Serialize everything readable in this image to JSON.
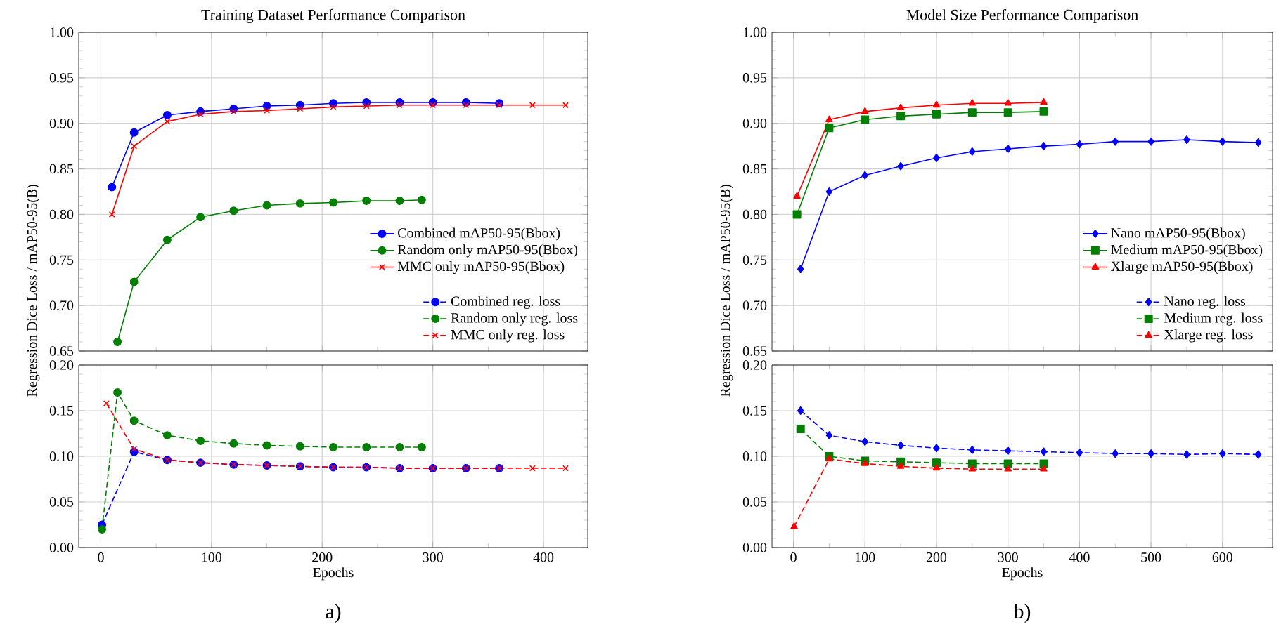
{
  "chart_data": [
    {
      "type": "line",
      "title": "Training Dataset Performance Comparison",
      "ylabel": "Regression Dice Loss / mAP50-95(B)",
      "xlim": [
        -20,
        440
      ],
      "ylim": [
        0.65,
        1.0
      ],
      "xticks": [
        0,
        100,
        200,
        300,
        400
      ],
      "yticks": [
        0.65,
        {
          "value": 0.7,
          "label": "0.70"
        },
        0.75,
        {
          "value": 0.8,
          "label": "0.80"
        },
        0.85,
        {
          "value": 0.9,
          "label": "0.90"
        },
        0.95,
        {
          "value": 1.0,
          "label": "1.00"
        }
      ],
      "grid": true,
      "legend": "bottom right",
      "tick_labels": "y",
      "series": [
        {
          "name": "Combined mAP50-95(Bbox)",
          "color": "#0000ff",
          "marker": "circle",
          "line_style": "solid",
          "x": [
            10,
            30,
            60,
            90,
            120,
            150,
            180,
            210,
            240,
            270,
            300,
            330,
            360
          ],
          "values": [
            0.83,
            0.89,
            0.909,
            0.913,
            0.916,
            0.919,
            0.92,
            0.922,
            0.923,
            0.923,
            0.923,
            0.923,
            0.922
          ]
        },
        {
          "name": "Random only mAP50-95(Bbox)",
          "color": "#008000",
          "marker": "circle",
          "line_style": "solid",
          "x": [
            15,
            30,
            60,
            90,
            120,
            150,
            180,
            210,
            240,
            270,
            290
          ],
          "values": [
            0.66,
            0.726,
            0.772,
            0.797,
            0.804,
            0.81,
            0.812,
            0.813,
            0.815,
            0.815,
            0.816
          ]
        },
        {
          "name": "MMC only mAP50-95(Bbox)",
          "color": "#ff0000",
          "marker": "cross",
          "line_style": "solid",
          "x": [
            10,
            30,
            60,
            90,
            120,
            150,
            180,
            210,
            240,
            270,
            300,
            330,
            360,
            390,
            420
          ],
          "values": [
            0.8,
            0.875,
            0.902,
            0.91,
            0.913,
            0.914,
            0.916,
            0.918,
            0.919,
            0.92,
            0.92,
            0.92,
            0.92,
            0.92,
            0.92
          ]
        }
      ]
    },
    {
      "type": "line",
      "xlabel": "Epochs",
      "xlim": [
        -20,
        440
      ],
      "ylim": [
        0,
        0.2
      ],
      "xticks": [
        0,
        100,
        200,
        300,
        400
      ],
      "yticks": [
        {
          "value": 0,
          "label": "0.00"
        },
        0.05,
        {
          "value": 0.1,
          "label": "0.10"
        },
        0.15,
        {
          "value": 0.2,
          "label": "0.20"
        }
      ],
      "grid": true,
      "legend": "top right",
      "annotations": [
        "a)"
      ],
      "series": [
        {
          "name": "Combined reg. loss",
          "color": "#0000ff",
          "marker": "circle",
          "line_style": "dashed",
          "x": [
            1,
            30,
            60,
            90,
            120,
            150,
            180,
            210,
            240,
            270,
            300,
            330,
            360
          ],
          "values": [
            0.025,
            0.105,
            0.096,
            0.093,
            0.091,
            0.09,
            0.089,
            0.088,
            0.088,
            0.087,
            0.087,
            0.087,
            0.087
          ]
        },
        {
          "name": "Random only reg. loss",
          "color": "#008000",
          "marker": "circle",
          "line_style": "dashed",
          "x": [
            1,
            15,
            30,
            60,
            90,
            120,
            150,
            180,
            210,
            240,
            270,
            290
          ],
          "values": [
            0.02,
            0.17,
            0.139,
            0.123,
            0.117,
            0.114,
            0.112,
            0.111,
            0.11,
            0.11,
            0.11,
            0.11
          ]
        },
        {
          "name": "MMC only reg. loss",
          "color": "#ff0000",
          "marker": "cross",
          "line_style": "dashed",
          "x": [
            5,
            30,
            60,
            90,
            120,
            150,
            180,
            210,
            240,
            270,
            300,
            330,
            360,
            390,
            420
          ],
          "values": [
            0.158,
            0.108,
            0.096,
            0.093,
            0.091,
            0.09,
            0.089,
            0.088,
            0.088,
            0.087,
            0.087,
            0.087,
            0.087,
            0.087,
            0.087
          ]
        }
      ]
    },
    {
      "type": "line",
      "title": "Model Size Performance Comparison",
      "ylabel": "Regression Dice Loss / mAP50-95(B)",
      "xlim": [
        -30,
        670
      ],
      "ylim": [
        0.65,
        1.0
      ],
      "xticks": [
        0,
        100,
        200,
        300,
        400,
        500,
        600
      ],
      "yticks": [
        0.65,
        {
          "value": 0.7,
          "label": "0.70"
        },
        0.75,
        {
          "value": 0.8,
          "label": "0.80"
        },
        0.85,
        {
          "value": 0.9,
          "label": "0.90"
        },
        0.95,
        {
          "value": 1.0,
          "label": "1.00"
        }
      ],
      "grid": true,
      "legend": "bottom right",
      "tick_labels": "y",
      "series": [
        {
          "name": "Nano mAP50-95(Bbox)",
          "color": "#0000ff",
          "marker": "diamond",
          "line_style": "solid",
          "x": [
            10,
            50,
            100,
            150,
            200,
            250,
            300,
            350,
            400,
            450,
            500,
            550,
            600,
            650
          ],
          "values": [
            0.74,
            0.825,
            0.843,
            0.853,
            0.862,
            0.869,
            0.872,
            0.875,
            0.877,
            0.88,
            0.88,
            0.882,
            0.88,
            0.879
          ]
        },
        {
          "name": "Medium mAP50-95(Bbox)",
          "color": "#008000",
          "marker": "square",
          "line_style": "solid",
          "x": [
            5,
            50,
            100,
            150,
            200,
            250,
            300,
            350
          ],
          "values": [
            0.8,
            0.895,
            0.904,
            0.908,
            0.91,
            0.912,
            0.912,
            0.913
          ]
        },
        {
          "name": "Xlarge mAP50-95(Bbox)",
          "color": "#ff0000",
          "marker": "triangle",
          "line_style": "solid",
          "x": [
            5,
            50,
            100,
            150,
            200,
            250,
            300,
            350
          ],
          "values": [
            0.82,
            0.904,
            0.913,
            0.917,
            0.92,
            0.922,
            0.922,
            0.923
          ]
        }
      ]
    },
    {
      "type": "line",
      "xlabel": "Epochs",
      "xlim": [
        -30,
        670
      ],
      "ylim": [
        0,
        0.2
      ],
      "xticks": [
        0,
        100,
        200,
        300,
        400,
        500,
        600
      ],
      "yticks": [
        {
          "value": 0,
          "label": "0.00"
        },
        0.05,
        {
          "value": 0.1,
          "label": "0.10"
        },
        0.15,
        {
          "value": 0.2,
          "label": "0.20"
        }
      ],
      "grid": true,
      "legend": "top right",
      "annotations": [
        "b)"
      ],
      "series": [
        {
          "name": "Nano reg. loss",
          "color": "#0000ff",
          "marker": "diamond",
          "line_style": "dashed",
          "x": [
            10,
            50,
            100,
            150,
            200,
            250,
            300,
            350,
            400,
            450,
            500,
            550,
            600,
            650
          ],
          "values": [
            0.15,
            0.123,
            0.116,
            0.112,
            0.109,
            0.107,
            0.106,
            0.105,
            0.104,
            0.103,
            0.103,
            0.102,
            0.103,
            0.102
          ]
        },
        {
          "name": "Medium reg. loss",
          "color": "#008000",
          "marker": "square",
          "line_style": "dashed",
          "x": [
            10,
            50,
            100,
            150,
            200,
            250,
            300,
            350
          ],
          "values": [
            0.13,
            0.1,
            0.095,
            0.094,
            0.093,
            0.092,
            0.092,
            0.092
          ]
        },
        {
          "name": "Xlarge reg. loss",
          "color": "#ff0000",
          "marker": "triangle",
          "line_style": "dashed",
          "x": [
            1,
            50,
            100,
            150,
            200,
            250,
            300,
            350
          ],
          "values": [
            0.023,
            0.097,
            0.092,
            0.089,
            0.087,
            0.086,
            0.086,
            0.086
          ]
        }
      ]
    }
  ]
}
